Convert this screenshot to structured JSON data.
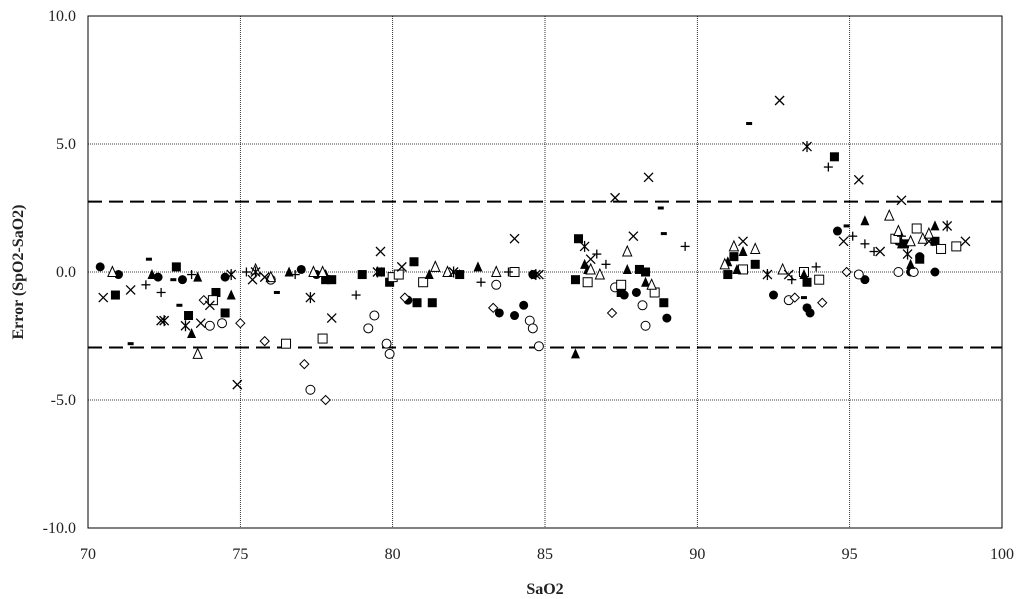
{
  "chart_data": {
    "type": "scatter",
    "title": "",
    "xlabel": "SaO2",
    "ylabel": "Error (SpO2-SaO2)",
    "xlim": [
      70,
      100
    ],
    "ylim": [
      -10,
      10
    ],
    "xticks": [
      70,
      75,
      80,
      85,
      90,
      95,
      100
    ],
    "xtick_labels": [
      "70",
      "75",
      "80",
      "85",
      "90",
      "95",
      "100"
    ],
    "yticks": [
      10,
      5,
      0,
      -5,
      -10
    ],
    "ytick_labels": [
      "10.0",
      "5.0",
      "0.0",
      "-5.0",
      "-10.0"
    ],
    "grid": true,
    "reference_lines": [
      2.75,
      -2.95
    ],
    "series": [
      {
        "marker": "filled-circle",
        "x": [
          70.4,
          71.0,
          72.3,
          73.1,
          74.5,
          77.0,
          77.5,
          79.6,
          80.5,
          83.5,
          84.0,
          84.3,
          84.6,
          87.6,
          88.0,
          89.0,
          92.5,
          93.6,
          93.7,
          94.6,
          95.5,
          96.6,
          97.0,
          97.3,
          97.8
        ],
        "y": [
          0.2,
          -0.1,
          -0.2,
          -0.3,
          -0.2,
          0.1,
          -0.1,
          0.0,
          -1.1,
          -1.6,
          -1.7,
          -1.3,
          -0.1,
          -0.9,
          -0.8,
          -1.8,
          -0.9,
          -1.4,
          -1.6,
          1.6,
          -0.3,
          1.2,
          0.0,
          0.6,
          0.0
        ]
      },
      {
        "marker": "open-circle",
        "x": [
          74.0,
          74.4,
          76.0,
          77.3,
          79.2,
          79.4,
          79.8,
          79.9,
          83.4,
          84.5,
          84.6,
          84.8,
          87.3,
          88.2,
          88.3,
          93.0,
          95.3,
          96.6,
          97.1
        ],
        "y": [
          -2.1,
          -2.0,
          -0.3,
          -4.6,
          -2.2,
          -1.7,
          -2.8,
          -3.2,
          -0.5,
          -1.9,
          -2.2,
          -2.9,
          -0.6,
          -1.3,
          -2.1,
          -1.1,
          -0.1,
          0.0,
          0.0
        ]
      },
      {
        "marker": "filled-square",
        "x": [
          70.9,
          72.9,
          73.3,
          74.2,
          74.5,
          77.8,
          78.0,
          79.0,
          79.6,
          79.9,
          80.7,
          80.8,
          81.3,
          82.2,
          86.0,
          86.1,
          86.4,
          87.5,
          88.1,
          88.3,
          88.9,
          91.0,
          91.2,
          91.9,
          93.6,
          94.5,
          96.8,
          97.3,
          97.8
        ],
        "y": [
          -0.9,
          0.2,
          -1.7,
          -0.8,
          -1.6,
          -0.3,
          -0.3,
          -0.1,
          0.0,
          -0.4,
          0.4,
          -1.2,
          -1.2,
          -0.1,
          -0.3,
          1.3,
          -0.4,
          -0.8,
          0.1,
          0.0,
          -1.2,
          -0.1,
          0.6,
          0.3,
          -0.4,
          4.5,
          1.1,
          0.5,
          1.2
        ]
      },
      {
        "marker": "open-square",
        "x": [
          74.1,
          76.5,
          77.7,
          80.0,
          80.2,
          81.0,
          84.0,
          86.4,
          87.5,
          88.6,
          91.5,
          93.5,
          94.0,
          96.5,
          97.2,
          98.0,
          98.5
        ],
        "y": [
          -1.1,
          -2.8,
          -2.6,
          -0.2,
          -0.1,
          -0.4,
          0.0,
          -0.4,
          -0.5,
          -0.8,
          0.1,
          0.0,
          -0.3,
          1.3,
          1.7,
          0.9,
          1.0
        ]
      },
      {
        "marker": "filled-triangle",
        "x": [
          72.1,
          73.4,
          73.6,
          74.7,
          76.6,
          77.8,
          81.2,
          82.2,
          82.8,
          86.0,
          86.3,
          86.4,
          87.7,
          88.3,
          91.0,
          91.3,
          91.5,
          93.5,
          95.5,
          96.7,
          97.0,
          97.8
        ],
        "y": [
          -0.1,
          -2.4,
          -0.2,
          -0.9,
          0.0,
          -0.1,
          -0.1,
          -0.1,
          0.2,
          -3.2,
          0.3,
          0.1,
          0.1,
          -0.4,
          0.4,
          0.1,
          0.8,
          -0.1,
          2.0,
          1.1,
          0.3,
          1.8
        ]
      },
      {
        "marker": "open-triangle",
        "x": [
          70.8,
          73.6,
          75.5,
          76.0,
          77.4,
          77.7,
          81.4,
          81.8,
          83.4,
          86.5,
          86.8,
          87.7,
          88.5,
          90.9,
          91.2,
          91.9,
          92.8,
          96.3,
          96.6,
          97.0,
          97.4,
          97.6
        ],
        "y": [
          0.0,
          -3.2,
          0.1,
          -0.2,
          0.0,
          0.0,
          0.2,
          0.0,
          0.0,
          0.1,
          -0.1,
          0.8,
          -0.5,
          0.3,
          1.0,
          0.9,
          0.1,
          2.2,
          1.6,
          1.2,
          1.3,
          1.5
        ]
      },
      {
        "marker": "open-diamond",
        "x": [
          73.8,
          75.0,
          75.8,
          77.1,
          77.8,
          80.4,
          83.3,
          87.2,
          93.2,
          94.1,
          94.9
        ],
        "y": [
          -1.1,
          -2.0,
          -2.7,
          -3.6,
          -5.0,
          -1.0,
          -1.4,
          -1.6,
          -1.0,
          -1.2,
          0.0
        ]
      },
      {
        "marker": "plus",
        "x": [
          71.9,
          72.4,
          73.4,
          75.2,
          76.8,
          78.8,
          82.9,
          83.8,
          86.7,
          87.0,
          89.6,
          93.1,
          93.9,
          94.3,
          95.1,
          95.5,
          95.8,
          96.7
        ],
        "y": [
          -0.5,
          -0.8,
          -0.1,
          0.0,
          -0.1,
          -0.9,
          -0.4,
          0.0,
          0.7,
          0.3,
          1.0,
          -0.3,
          0.2,
          4.1,
          1.4,
          1.1,
          0.8,
          1.4
        ]
      },
      {
        "marker": "x",
        "x": [
          70.5,
          71.4,
          72.4,
          73.7,
          74.0,
          74.9,
          75.4,
          75.8,
          78.0,
          79.6,
          80.3,
          84.0,
          84.8,
          86.5,
          87.3,
          87.9,
          88.4,
          91.5,
          92.7,
          93.0,
          94.8,
          95.3,
          96.0,
          96.7,
          97.6,
          98.8
        ],
        "y": [
          -1.0,
          -0.7,
          -1.9,
          -2.0,
          -1.3,
          -4.4,
          -0.3,
          -0.2,
          -1.8,
          0.8,
          0.2,
          1.3,
          -0.1,
          0.5,
          2.9,
          1.4,
          3.7,
          1.2,
          6.7,
          -0.1,
          1.2,
          3.6,
          0.8,
          2.8,
          1.2,
          1.2
        ]
      },
      {
        "marker": "asterisk",
        "x": [
          72.5,
          73.2,
          74.7,
          75.5,
          77.3,
          79.5,
          82.0,
          84.7,
          86.3,
          92.3,
          93.6,
          96.9,
          98.2
        ],
        "y": [
          -1.9,
          -2.1,
          -0.1,
          0.0,
          -1.0,
          0.0,
          0.0,
          -0.1,
          1.0,
          -0.1,
          4.9,
          0.7,
          1.8
        ]
      },
      {
        "marker": "dash",
        "x": [
          71.4,
          72.0,
          72.8,
          73.0,
          76.2,
          88.8,
          88.9,
          91.7,
          93.5,
          94.9
        ],
        "y": [
          -2.8,
          0.5,
          -0.3,
          -1.3,
          -0.8,
          2.5,
          1.5,
          5.8,
          -1.0,
          1.8
        ]
      }
    ]
  }
}
